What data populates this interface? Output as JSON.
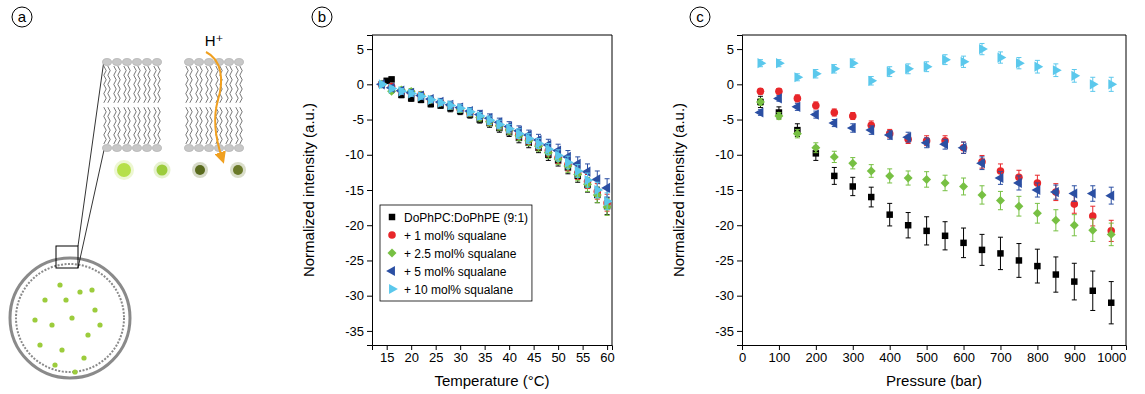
{
  "chart_data": [
    {
      "type": "diagram",
      "label": "a",
      "annotations": [
        "H⁺"
      ]
    },
    {
      "type": "scatter",
      "label": "b",
      "x_label": "Temperature (°C)",
      "y_label": "Normalized intensity (a.u.)",
      "xlim": [
        12,
        61
      ],
      "ylim": [
        -37,
        7
      ],
      "xticks": [
        15,
        20,
        25,
        30,
        35,
        40,
        45,
        50,
        55,
        60
      ],
      "yticks": [
        -35,
        -30,
        -25,
        -20,
        -15,
        -10,
        -5,
        0,
        5
      ],
      "legend": "lower left",
      "series": [
        {
          "name": "DoPhPC:DoPhPE (9:1)",
          "color": "#000000",
          "marker": "square",
          "x": [
            14,
            15,
            16,
            18,
            20,
            22,
            24,
            26,
            28,
            30,
            32,
            34,
            36,
            38,
            40,
            42,
            44,
            46,
            48,
            50,
            52,
            54,
            56,
            58,
            60
          ],
          "values": [
            0,
            0.5,
            0.7,
            -1.5,
            -2,
            -2.2,
            -2.8,
            -3,
            -3.4,
            -3.8,
            -4.3,
            -5,
            -5.5,
            -6.2,
            -6.8,
            -7.6,
            -8.3,
            -9,
            -10,
            -10.8,
            -11.8,
            -13,
            -14.3,
            -15.7,
            -17.3
          ],
          "errors": [
            0.3,
            0.3,
            0.3,
            0.4,
            0.4,
            0.4,
            0.4,
            0.4,
            0.5,
            0.5,
            0.5,
            0.5,
            0.6,
            0.6,
            0.6,
            0.7,
            0.7,
            0.7,
            0.8,
            0.8,
            0.9,
            0.9,
            1.0,
            1.1,
            1.2
          ]
        },
        {
          "name": "+ 1 mol% squalane",
          "color": "#e8262a",
          "marker": "circle",
          "x": [
            14,
            16,
            18,
            20,
            22,
            24,
            26,
            28,
            30,
            32,
            34,
            36,
            38,
            40,
            42,
            44,
            46,
            48,
            50,
            52,
            54,
            56,
            58,
            60
          ],
          "values": [
            0,
            -0.3,
            -1,
            -1.2,
            -1.5,
            -2.2,
            -2.6,
            -3,
            -3.5,
            -4,
            -4.6,
            -5.2,
            -5.8,
            -6.4,
            -7.1,
            -7.8,
            -8.6,
            -9.4,
            -10.4,
            -11.4,
            -12.6,
            -13.8,
            -15.2,
            -16.8
          ],
          "errors": [
            0.3,
            0.3,
            0.4,
            0.4,
            0.4,
            0.4,
            0.4,
            0.5,
            0.5,
            0.5,
            0.5,
            0.6,
            0.6,
            0.6,
            0.7,
            0.7,
            0.7,
            0.8,
            0.8,
            0.9,
            0.9,
            1.0,
            1.1,
            1.2
          ]
        },
        {
          "name": "+ 2.5 mol% squalane",
          "color": "#77c043",
          "marker": "diamond",
          "x": [
            14,
            16,
            18,
            20,
            22,
            24,
            26,
            28,
            30,
            32,
            34,
            36,
            38,
            40,
            42,
            44,
            46,
            48,
            50,
            52,
            54,
            56,
            58,
            60
          ],
          "values": [
            0,
            -1,
            -0.8,
            -1,
            -1.5,
            -2.2,
            -2.6,
            -3,
            -3.5,
            -4,
            -4.7,
            -5.3,
            -5.9,
            -6.5,
            -7.3,
            -8,
            -8.8,
            -9.7,
            -10.6,
            -11.6,
            -12.8,
            -14.2,
            -15.7,
            -17.4
          ],
          "errors": [
            0.3,
            0.3,
            0.4,
            0.4,
            0.4,
            0.4,
            0.4,
            0.5,
            0.5,
            0.5,
            0.5,
            0.6,
            0.6,
            0.6,
            0.7,
            0.7,
            0.7,
            0.8,
            0.8,
            0.9,
            0.9,
            1.0,
            1.1,
            1.2
          ]
        },
        {
          "name": "+ 5 mol% squalane",
          "color": "#2b4fa3",
          "marker": "triangle-left",
          "x": [
            14,
            16,
            18,
            20,
            22,
            24,
            26,
            28,
            30,
            32,
            34,
            36,
            38,
            40,
            42,
            44,
            46,
            48,
            50,
            52,
            54,
            56,
            58,
            60
          ],
          "values": [
            0,
            -0.5,
            -0.9,
            -1.2,
            -1.6,
            -2.1,
            -2.5,
            -2.9,
            -3.3,
            -3.8,
            -4.3,
            -4.8,
            -5.4,
            -6,
            -6.6,
            -7.2,
            -7.9,
            -8.6,
            -9.4,
            -10.3,
            -11.3,
            -12.4,
            -13.5,
            -14.7
          ],
          "errors": [
            0.3,
            0.3,
            0.4,
            0.4,
            0.4,
            0.4,
            0.5,
            0.5,
            0.5,
            0.5,
            0.6,
            0.6,
            0.6,
            0.7,
            0.7,
            0.7,
            0.8,
            0.8,
            0.9,
            0.9,
            1.0,
            1.1,
            1.2,
            1.3
          ]
        },
        {
          "name": "+ 10 mol% squalane",
          "color": "#5bc8ec",
          "marker": "triangle-right",
          "x": [
            14,
            16,
            18,
            20,
            22,
            24,
            26,
            28,
            30,
            32,
            34,
            36,
            38,
            40,
            42,
            44,
            46,
            48,
            50,
            52,
            54,
            56,
            58,
            60
          ],
          "values": [
            0,
            -0.6,
            -1,
            -1.3,
            -1.7,
            -2.2,
            -2.6,
            -3,
            -3.4,
            -3.9,
            -4.5,
            -5.1,
            -5.7,
            -6.3,
            -7,
            -7.7,
            -8.4,
            -9.2,
            -10.1,
            -11.1,
            -12.3,
            -13.6,
            -15,
            -16.6
          ],
          "errors": [
            0.3,
            0.3,
            0.4,
            0.4,
            0.4,
            0.4,
            0.4,
            0.5,
            0.5,
            0.5,
            0.5,
            0.6,
            0.6,
            0.6,
            0.7,
            0.7,
            0.7,
            0.8,
            0.8,
            0.9,
            0.9,
            1.0,
            1.1,
            1.2
          ]
        }
      ]
    },
    {
      "type": "scatter",
      "label": "c",
      "x_label": "Pressure (bar)",
      "y_label": "Normalized intensity (a.u.)",
      "xlim": [
        0,
        1040
      ],
      "ylim": [
        -37,
        7
      ],
      "xticks": [
        0,
        100,
        200,
        300,
        400,
        500,
        600,
        700,
        800,
        900,
        1000
      ],
      "yticks": [
        -35,
        -30,
        -25,
        -20,
        -15,
        -10,
        -5,
        0,
        5
      ],
      "series": [
        {
          "color": "#000000",
          "marker": "square",
          "x": [
            50,
            100,
            150,
            200,
            250,
            300,
            350,
            400,
            450,
            500,
            550,
            600,
            650,
            700,
            750,
            800,
            850,
            900,
            950,
            1000
          ],
          "values": [
            -2.5,
            -4,
            -6.5,
            -9.8,
            -13,
            -14.5,
            -16,
            -18.5,
            -20,
            -20.8,
            -21.5,
            -22.5,
            -23.5,
            -24,
            -25,
            -25.8,
            -27,
            -28,
            -29.3,
            -31
          ],
          "errors": [
            0.8,
            0.8,
            0.9,
            1.0,
            1.2,
            1.3,
            1.4,
            1.6,
            1.8,
            2.0,
            2.0,
            2.1,
            2.2,
            2.3,
            2.4,
            2.4,
            2.5,
            2.6,
            2.8,
            3.0
          ]
        },
        {
          "color": "#e8262a",
          "marker": "circle",
          "x": [
            50,
            100,
            150,
            200,
            250,
            300,
            350,
            400,
            450,
            500,
            550,
            600,
            650,
            700,
            750,
            800,
            850,
            900,
            950,
            1000
          ],
          "values": [
            -1,
            -1,
            -2,
            -3,
            -4,
            -4.5,
            -5.8,
            -7,
            -7.8,
            -8,
            -8,
            -9,
            -11,
            -12.3,
            -13.2,
            -14,
            -15.3,
            -17,
            -18.7,
            -20.8
          ],
          "errors": [
            0.4,
            0.4,
            0.5,
            0.5,
            0.5,
            0.5,
            0.6,
            0.6,
            0.6,
            0.7,
            0.7,
            0.8,
            0.9,
            1.0,
            1.0,
            1.1,
            1.2,
            1.3,
            1.4,
            1.5
          ]
        },
        {
          "color": "#77c043",
          "marker": "diamond",
          "x": [
            50,
            100,
            150,
            200,
            250,
            300,
            350,
            400,
            450,
            500,
            550,
            600,
            650,
            700,
            750,
            800,
            850,
            900,
            950,
            1000
          ],
          "values": [
            -2.5,
            -4.5,
            -7,
            -9,
            -10.3,
            -11.2,
            -12.3,
            -13,
            -13.3,
            -13.5,
            -14,
            -14.5,
            -15.7,
            -16.5,
            -17.3,
            -18.3,
            -19.3,
            -20,
            -20.7,
            -21.3
          ],
          "errors": [
            0.5,
            0.5,
            0.6,
            0.7,
            0.8,
            0.8,
            0.9,
            1.0,
            1.0,
            1.1,
            1.1,
            1.2,
            1.3,
            1.3,
            1.4,
            1.4,
            1.5,
            1.5,
            1.6,
            1.6
          ]
        },
        {
          "color": "#2b4fa3",
          "marker": "triangle-left",
          "x": [
            50,
            100,
            150,
            200,
            250,
            300,
            350,
            400,
            450,
            500,
            550,
            600,
            650,
            700,
            750,
            800,
            850,
            900,
            950,
            1000
          ],
          "values": [
            -4,
            -2,
            -3.2,
            -4.3,
            -5.5,
            -6.2,
            -6.5,
            -7.2,
            -7.5,
            -8.3,
            -8.5,
            -9,
            -11.2,
            -13.3,
            -14,
            -15,
            -15.3,
            -15.5,
            -15.5,
            -15.8
          ],
          "errors": [
            0.4,
            0.4,
            0.5,
            0.5,
            0.5,
            0.6,
            0.6,
            0.6,
            0.7,
            0.7,
            0.7,
            0.8,
            0.9,
            0.9,
            1.0,
            1.0,
            1.0,
            1.1,
            1.1,
            1.2
          ]
        },
        {
          "color": "#5bc8ec",
          "marker": "triangle-right",
          "x": [
            50,
            100,
            150,
            200,
            250,
            300,
            350,
            400,
            450,
            500,
            550,
            600,
            650,
            700,
            750,
            800,
            850,
            900,
            950,
            1000
          ],
          "values": [
            3,
            3,
            1,
            1.5,
            2.2,
            3,
            0.5,
            1.8,
            2.2,
            2.5,
            3.5,
            3.2,
            5,
            3.8,
            3,
            2.5,
            2,
            1.2,
            0,
            0
          ],
          "errors": [
            0.5,
            0.5,
            0.5,
            0.6,
            0.6,
            0.6,
            0.6,
            0.7,
            0.7,
            0.7,
            0.7,
            0.8,
            0.8,
            0.8,
            0.8,
            0.9,
            0.9,
            0.9,
            1.0,
            1.0
          ]
        }
      ]
    }
  ]
}
